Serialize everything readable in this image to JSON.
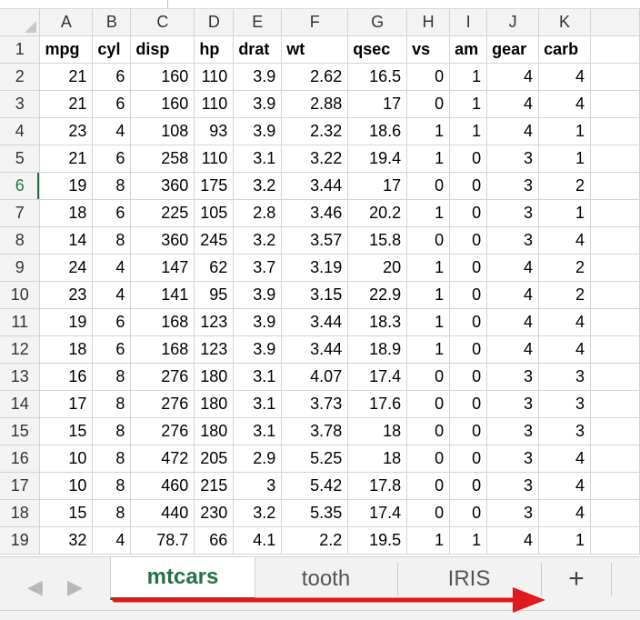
{
  "columns": [
    "A",
    "B",
    "C",
    "D",
    "E",
    "F",
    "G",
    "H",
    "I",
    "J",
    "K"
  ],
  "rows": [
    {
      "n": "1",
      "cells": [
        "mpg",
        "cyl",
        "disp",
        "hp",
        "drat",
        "wt",
        "qsec",
        "vs",
        "am",
        "gear",
        "carb"
      ]
    },
    {
      "n": "2",
      "cells": [
        "21",
        "6",
        "160",
        "110",
        "3.9",
        "2.62",
        "16.5",
        "0",
        "1",
        "4",
        "4"
      ]
    },
    {
      "n": "3",
      "cells": [
        "21",
        "6",
        "160",
        "110",
        "3.9",
        "2.88",
        "17",
        "0",
        "1",
        "4",
        "4"
      ]
    },
    {
      "n": "4",
      "cells": [
        "23",
        "4",
        "108",
        "93",
        "3.9",
        "2.32",
        "18.6",
        "1",
        "1",
        "4",
        "1"
      ]
    },
    {
      "n": "5",
      "cells": [
        "21",
        "6",
        "258",
        "110",
        "3.1",
        "3.22",
        "19.4",
        "1",
        "0",
        "3",
        "1"
      ]
    },
    {
      "n": "6",
      "cells": [
        "19",
        "8",
        "360",
        "175",
        "3.2",
        "3.44",
        "17",
        "0",
        "0",
        "3",
        "2"
      ]
    },
    {
      "n": "7",
      "cells": [
        "18",
        "6",
        "225",
        "105",
        "2.8",
        "3.46",
        "20.2",
        "1",
        "0",
        "3",
        "1"
      ]
    },
    {
      "n": "8",
      "cells": [
        "14",
        "8",
        "360",
        "245",
        "3.2",
        "3.57",
        "15.8",
        "0",
        "0",
        "3",
        "4"
      ]
    },
    {
      "n": "9",
      "cells": [
        "24",
        "4",
        "147",
        "62",
        "3.7",
        "3.19",
        "20",
        "1",
        "0",
        "4",
        "2"
      ]
    },
    {
      "n": "10",
      "cells": [
        "23",
        "4",
        "141",
        "95",
        "3.9",
        "3.15",
        "22.9",
        "1",
        "0",
        "4",
        "2"
      ]
    },
    {
      "n": "11",
      "cells": [
        "19",
        "6",
        "168",
        "123",
        "3.9",
        "3.44",
        "18.3",
        "1",
        "0",
        "4",
        "4"
      ]
    },
    {
      "n": "12",
      "cells": [
        "18",
        "6",
        "168",
        "123",
        "3.9",
        "3.44",
        "18.9",
        "1",
        "0",
        "4",
        "4"
      ]
    },
    {
      "n": "13",
      "cells": [
        "16",
        "8",
        "276",
        "180",
        "3.1",
        "4.07",
        "17.4",
        "0",
        "0",
        "3",
        "3"
      ]
    },
    {
      "n": "14",
      "cells": [
        "17",
        "8",
        "276",
        "180",
        "3.1",
        "3.73",
        "17.6",
        "0",
        "0",
        "3",
        "3"
      ]
    },
    {
      "n": "15",
      "cells": [
        "15",
        "8",
        "276",
        "180",
        "3.1",
        "3.78",
        "18",
        "0",
        "0",
        "3",
        "3"
      ]
    },
    {
      "n": "16",
      "cells": [
        "10",
        "8",
        "472",
        "205",
        "2.9",
        "5.25",
        "18",
        "0",
        "0",
        "3",
        "4"
      ]
    },
    {
      "n": "17",
      "cells": [
        "10",
        "8",
        "460",
        "215",
        "3",
        "5.42",
        "17.8",
        "0",
        "0",
        "3",
        "4"
      ]
    },
    {
      "n": "18",
      "cells": [
        "15",
        "8",
        "440",
        "230",
        "3.2",
        "5.35",
        "17.4",
        "0",
        "0",
        "3",
        "4"
      ]
    },
    {
      "n": "19",
      "cells": [
        "32",
        "4",
        "78.7",
        "66",
        "4.1",
        "2.2",
        "19.5",
        "1",
        "1",
        "4",
        "1"
      ]
    }
  ],
  "active_row": "6",
  "tabs": {
    "nav_prev": "◀",
    "nav_next": "▶",
    "sheets": [
      "mtcars",
      "tooth",
      "IRIS"
    ],
    "active": "mtcars",
    "add_label": "+"
  },
  "colors": {
    "accent": "#217346",
    "annotation_arrow": "#e0191d"
  },
  "icons": {
    "corner": "select-all-triangle",
    "prev": "triangle-left",
    "next": "triangle-right",
    "add": "plus",
    "annotation": "red-arrow"
  }
}
